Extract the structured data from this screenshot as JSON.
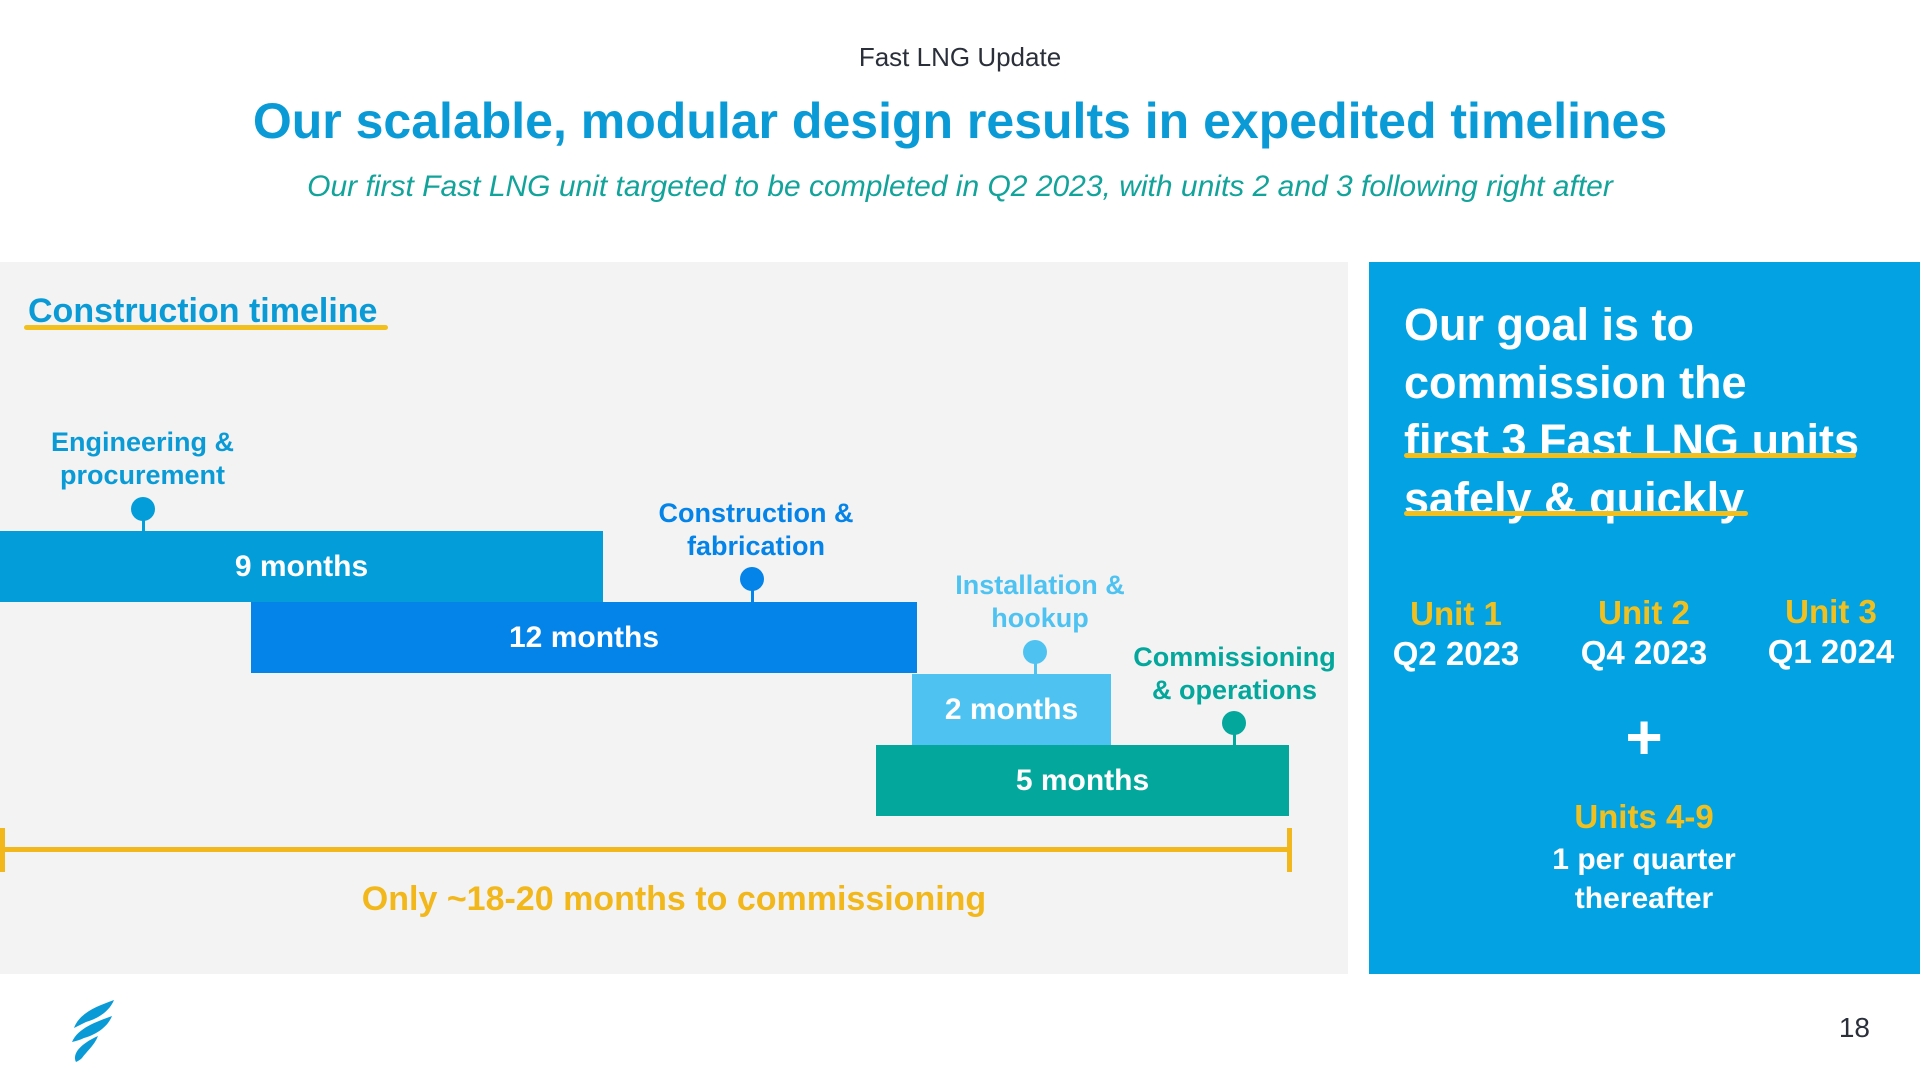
{
  "header": {
    "kicker": "Fast LNG Update",
    "title": "Our scalable, modular design results in expedited timelines",
    "subtitle": "Our first Fast LNG unit targeted to be completed in Q2 2023, with units 2 and 3 following right after"
  },
  "timeline": {
    "heading": "Construction timeline",
    "phases": [
      {
        "label_line1": "Engineering &",
        "label_line2": "procurement",
        "duration": "9 months",
        "color": "#039ed9"
      },
      {
        "label_line1": "Construction &",
        "label_line2": "fabrication",
        "duration": "12 months",
        "color": "#0483e8"
      },
      {
        "label_line1": "Installation &",
        "label_line2": "hookup",
        "duration": "2 months",
        "color": "#4ec3f1"
      },
      {
        "label_line1": "Commissioning",
        "label_line2": "& operations",
        "duration": "5 months",
        "color": "#03a79c"
      }
    ],
    "summary": "Only ~18-20 months to commissioning",
    "summary_color": "#f2b71a"
  },
  "goal": {
    "line1": "Our goal is to",
    "line2": "commission the",
    "line3": "first 3 Fast LNG units",
    "line4": "safely & quickly",
    "units": [
      {
        "name": "Unit 1",
        "date": "Q2 2023"
      },
      {
        "name": "Unit 2",
        "date": "Q4 2023"
      },
      {
        "name": "Unit 3",
        "date": "Q1 2024"
      }
    ],
    "plus": "+",
    "later_units_name": "Units 4-9",
    "later_units_line1": "1 per quarter",
    "later_units_line2": "thereafter"
  },
  "footer": {
    "page_number": "18",
    "logo_icon": "flame-logo-icon"
  }
}
